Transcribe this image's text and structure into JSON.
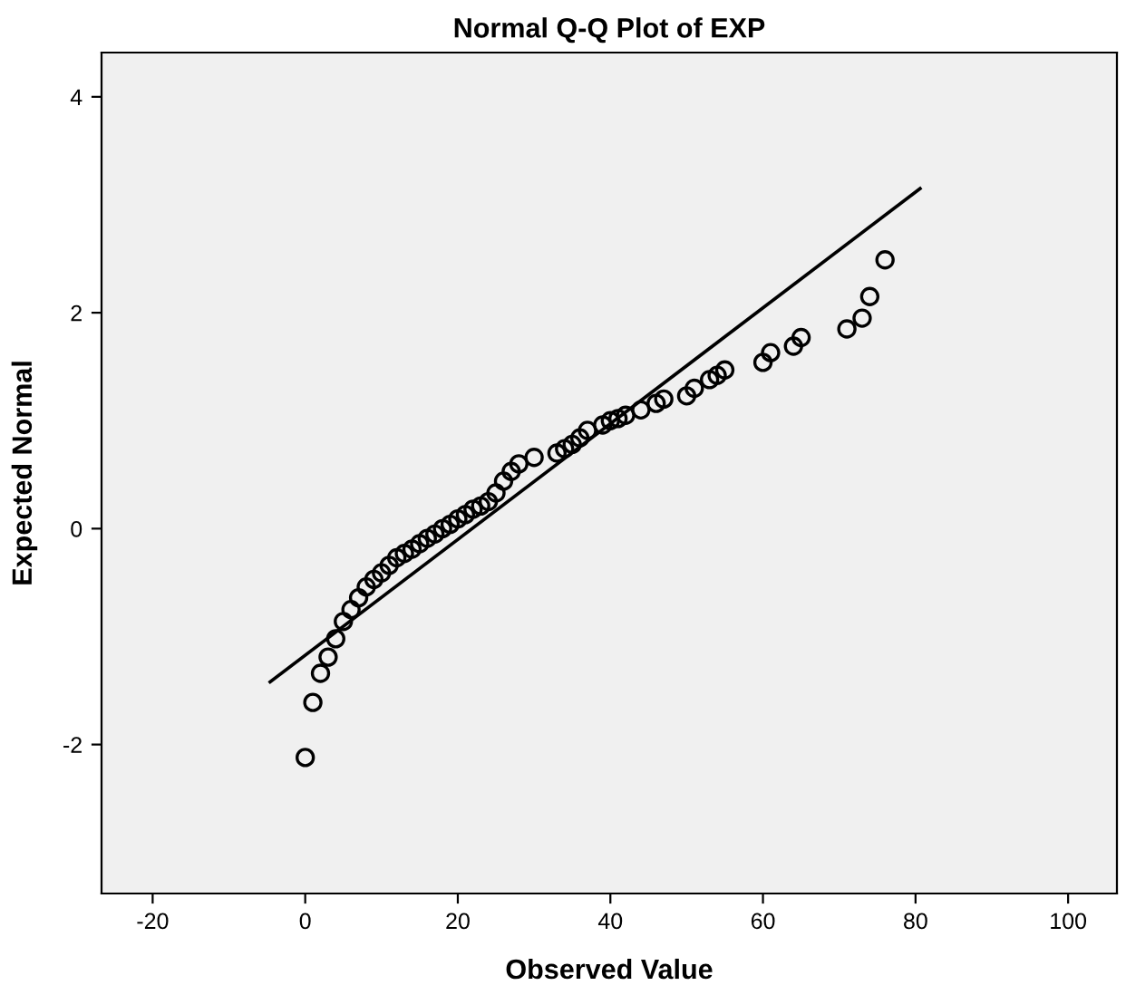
{
  "chart_data": {
    "type": "scatter",
    "title": "Normal Q-Q Plot of EXP",
    "xlabel": "Observed Value",
    "ylabel": "Expected Normal",
    "xlim": [
      -26.7,
      106.4
    ],
    "ylim": [
      -3.38,
      4.41
    ],
    "xticks": [
      -20,
      0,
      20,
      40,
      60,
      80,
      100
    ],
    "yticks": [
      -2,
      0,
      2,
      4
    ],
    "grid": false,
    "legend": false,
    "marker": "circle",
    "series": [
      {
        "color": "#000000",
        "x": [
          0,
          1,
          2,
          3,
          4,
          5,
          6,
          7,
          8,
          9,
          10,
          11,
          12,
          13,
          14,
          15,
          16,
          17,
          18,
          19,
          20,
          21,
          22,
          23,
          24,
          25,
          26,
          27,
          28,
          30,
          33,
          34,
          35,
          36,
          37,
          39,
          40,
          41,
          42,
          44,
          46,
          47,
          50,
          51,
          53,
          54,
          55,
          60,
          61,
          64,
          65,
          71,
          73,
          74,
          76
        ],
        "values": [
          -2.12,
          -1.61,
          -1.34,
          -1.19,
          -1.02,
          -0.86,
          -0.75,
          -0.64,
          -0.54,
          -0.47,
          -0.41,
          -0.34,
          -0.27,
          -0.23,
          -0.19,
          -0.14,
          -0.09,
          -0.05,
          0.0,
          0.04,
          0.09,
          0.13,
          0.18,
          0.21,
          0.25,
          0.33,
          0.44,
          0.53,
          0.6,
          0.66,
          0.7,
          0.74,
          0.78,
          0.84,
          0.91,
          0.96,
          1.0,
          1.02,
          1.05,
          1.1,
          1.16,
          1.2,
          1.23,
          1.3,
          1.38,
          1.42,
          1.47,
          1.54,
          1.63,
          1.69,
          1.77,
          1.85,
          1.95,
          2.15,
          2.49
        ]
      },
      {
        "type": "line",
        "color": "#000000",
        "x": [
          -4.6,
          80.6
        ],
        "values": [
          -1.42,
          3.15
        ],
        "line_style": "solid",
        "marker": "none"
      }
    ]
  }
}
